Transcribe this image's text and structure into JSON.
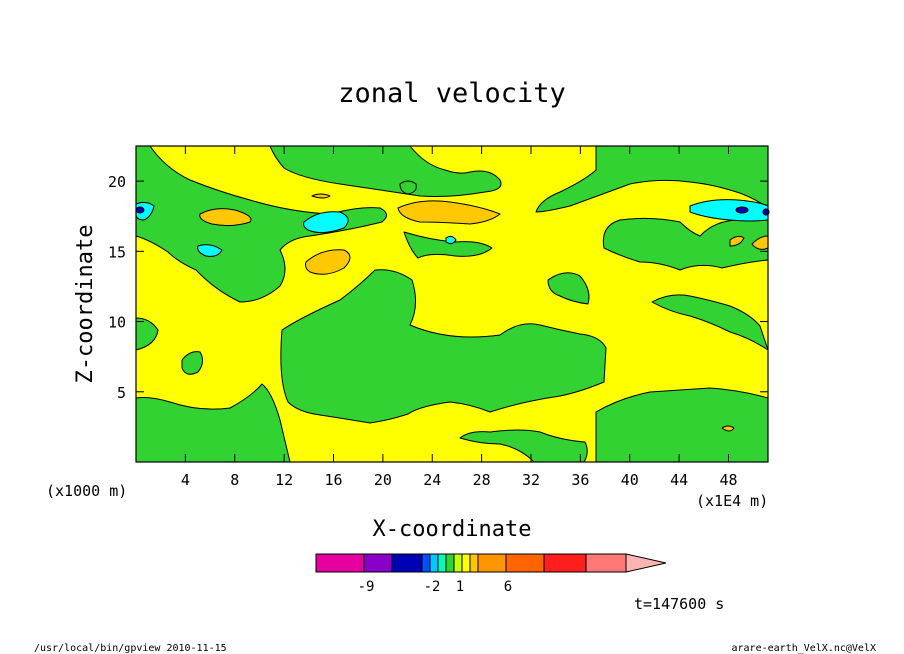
{
  "chart_data": {
    "type": "heatmap",
    "title": "zonal velocity",
    "xlabel": "X-coordinate",
    "ylabel": "Z-coordinate",
    "x_unit_label": "(x1E4 m)",
    "y_unit_label": "(x1000 m)",
    "xlim": [
      0,
      51.2
    ],
    "ylim": [
      0,
      22.5
    ],
    "x_ticks": [
      4,
      8,
      12,
      16,
      20,
      24,
      28,
      32,
      36,
      40,
      44,
      48
    ],
    "y_ticks": [
      5,
      10,
      15,
      20
    ],
    "colorbar": {
      "colors": [
        "#e6009e",
        "#8a00c8",
        "#0000b4",
        "#0050ff",
        "#00c8ff",
        "#00ffb4",
        "#32d232",
        "#c8ff00",
        "#ffff00",
        "#ffc800",
        "#ff9600",
        "#ff6400",
        "#ff1e1e",
        "#ff7878",
        "#ffb4b4"
      ],
      "tick_labels": [
        "-9",
        "-2",
        "1",
        "6"
      ]
    },
    "regions": [
      {
        "level": "green",
        "color": "#32d232",
        "description": "lower left band"
      },
      {
        "level": "green",
        "color": "#32d232",
        "description": "central block"
      },
      {
        "level": "green",
        "color": "#32d232",
        "description": "upper left band"
      },
      {
        "level": "green",
        "color": "#32d232",
        "description": "upper middle band"
      },
      {
        "level": "green",
        "color": "#32d232",
        "description": "upper right band"
      },
      {
        "level": "green",
        "color": "#32d232",
        "description": "right middle band"
      },
      {
        "level": "green",
        "color": "#32d232",
        "description": "lower right band"
      },
      {
        "level": "yellow",
        "color": "#ffff00",
        "description": "background"
      },
      {
        "level": "orange",
        "color": "#ffc800",
        "description": "upper middle cells"
      },
      {
        "level": "cyan",
        "color": "#00ffff",
        "description": "left negative cells"
      },
      {
        "level": "cyan",
        "color": "#00ffff",
        "description": "upper right negative cell"
      },
      {
        "level": "blue",
        "color": "#0000b4",
        "description": "upper right core"
      }
    ]
  },
  "annotations": {
    "time": "t=147600 s",
    "footer_left": "/usr/local/bin/gpview  2010-11-15",
    "footer_right": "arare-earth_VelX.nc@VelX"
  }
}
